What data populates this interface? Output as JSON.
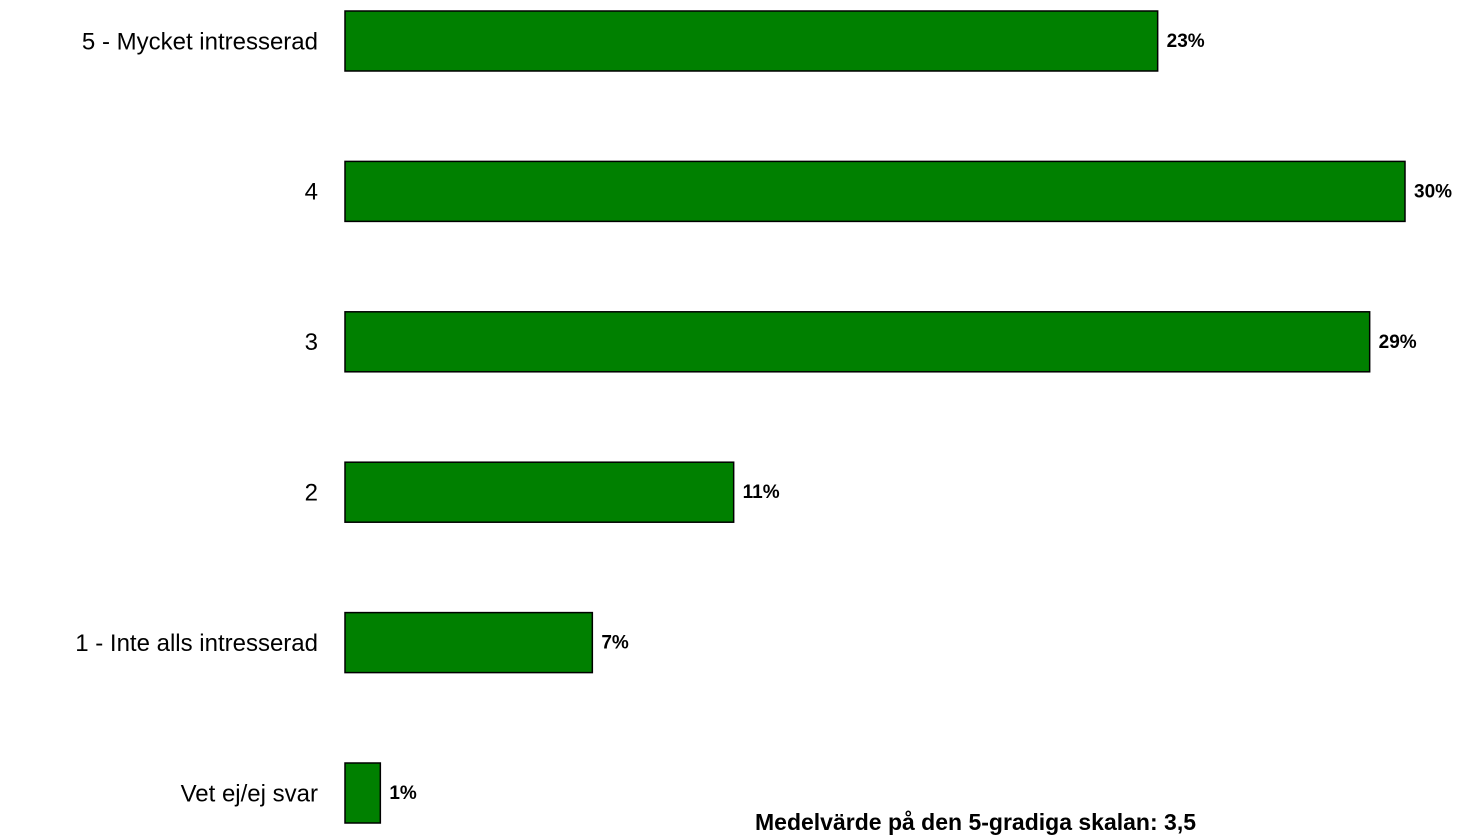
{
  "chart_data": {
    "type": "bar",
    "orientation": "horizontal",
    "categories": [
      "5 - Mycket intresserad",
      "4",
      "3",
      "2",
      "1 - Inte alls intresserad",
      "Vet ej/ej svar"
    ],
    "values": [
      23,
      30,
      29,
      11,
      7,
      1
    ],
    "value_labels": [
      "23%",
      "30%",
      "29%",
      "11%",
      "7%",
      "1%"
    ],
    "color": "#008000",
    "annotation": "Medelvärde på den 5-gradiga skalan: 3,5"
  }
}
